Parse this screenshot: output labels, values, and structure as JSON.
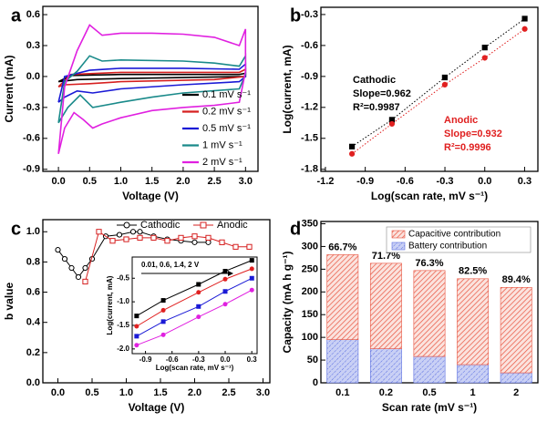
{
  "chart_data": [
    {
      "type": "line",
      "label": "a",
      "xlabel": "Voltage (V)",
      "ylabel": "Current (mA)",
      "xlim": [
        -0.25,
        3.2
      ],
      "ylim": [
        -0.92,
        0.68
      ],
      "xticks": [
        {
          "value": 0,
          "label": "0.0"
        },
        0.5,
        {
          "value": 1,
          "label": "1.0"
        },
        1.5,
        {
          "value": 2,
          "label": "2.0"
        },
        2.5,
        {
          "value": 3,
          "label": "3.0"
        }
      ],
      "yticks": [
        -0.9,
        -0.6,
        -0.3,
        {
          "value": 0,
          "label": "0.0"
        },
        0.3,
        0.6
      ],
      "legend": "lower right",
      "series": [
        {
          "name": "0.1 mV s⁻¹",
          "color": "#000000",
          "x": [
            0.0,
            0.2,
            1.0,
            2.9,
            3.0,
            3.0,
            1.0,
            0.3,
            0.0
          ],
          "values": [
            -0.05,
            0.01,
            0.02,
            0.02,
            0.03,
            0.0,
            -0.02,
            -0.03,
            -0.05
          ]
        },
        {
          "name": "0.2 mV s⁻¹",
          "color": "#d62020",
          "x": [
            0.0,
            0.2,
            1.0,
            2.9,
            3.0,
            3.0,
            2.5,
            1.0,
            0.5,
            0.1,
            0.0
          ],
          "values": [
            -0.1,
            0.02,
            0.04,
            0.04,
            0.07,
            0.0,
            -0.03,
            -0.05,
            -0.07,
            -0.08,
            -0.1
          ]
        },
        {
          "name": "0.5 mV s⁻¹",
          "color": "#1a1ad6",
          "x": [
            0.0,
            0.1,
            0.5,
            1.0,
            2.0,
            2.9,
            3.0,
            3.0,
            2.9,
            2.0,
            1.0,
            0.55,
            0.3,
            0.1,
            0.0
          ],
          "values": [
            -0.25,
            0.0,
            0.06,
            0.08,
            0.08,
            0.07,
            0.12,
            0.0,
            -0.05,
            -0.08,
            -0.12,
            -0.16,
            -0.14,
            -0.2,
            -0.25
          ]
        },
        {
          "name": "1 mV s⁻¹",
          "color": "#1a8a8a",
          "x": [
            0.0,
            0.1,
            0.3,
            0.5,
            0.7,
            1.0,
            2.0,
            2.5,
            2.9,
            3.0,
            3.0,
            2.9,
            2.0,
            1.5,
            1.0,
            0.55,
            0.35,
            0.15,
            0.0
          ],
          "values": [
            -0.45,
            -0.05,
            0.05,
            0.2,
            0.15,
            0.16,
            0.15,
            0.13,
            0.1,
            0.2,
            0.02,
            -0.12,
            -0.16,
            -0.2,
            -0.25,
            -0.3,
            -0.18,
            -0.3,
            -0.45
          ]
        },
        {
          "name": "2 mV s⁻¹",
          "color": "#e020e0",
          "x": [
            0.0,
            0.1,
            0.3,
            0.5,
            0.7,
            1.0,
            1.5,
            2.0,
            2.5,
            2.9,
            3.0,
            3.0,
            2.9,
            2.5,
            2.0,
            1.5,
            1.0,
            0.7,
            0.55,
            0.4,
            0.25,
            0.1,
            0.0
          ],
          "values": [
            -0.75,
            -0.1,
            0.25,
            0.5,
            0.4,
            0.42,
            0.42,
            0.41,
            0.38,
            0.3,
            0.46,
            0.05,
            -0.25,
            -0.28,
            -0.3,
            -0.33,
            -0.4,
            -0.46,
            -0.5,
            -0.42,
            -0.35,
            -0.5,
            -0.75
          ]
        }
      ]
    },
    {
      "type": "scatter",
      "label": "b",
      "xlabel": "Log(scan rate, mV s⁻¹)",
      "ylabel": "Log(current, mA)",
      "xlim": [
        -1.234,
        0.4
      ],
      "ylim": [
        -1.82,
        -0.23
      ],
      "xticks": [
        -1.2,
        -0.9,
        -0.6,
        -0.3,
        {
          "value": 0,
          "label": "0.0"
        },
        0.3
      ],
      "yticks": [
        -1.8,
        -1.5,
        -1.2,
        -0.9,
        -0.6,
        -0.3
      ],
      "x": [
        -1.0,
        -0.699,
        -0.301,
        0.0,
        0.301
      ],
      "series": [
        {
          "name": "Cathodic",
          "color": "#000000",
          "marker": "square",
          "line_style": "dotted",
          "values": [
            -1.58,
            -1.32,
            -0.91,
            -0.62,
            -0.34
          ]
        },
        {
          "name": "Anodic",
          "color": "#e02020",
          "marker": "circle",
          "line_style": "dotted",
          "values": [
            -1.65,
            -1.36,
            -0.98,
            -0.72,
            -0.44
          ]
        }
      ],
      "annotations": [
        "Cathodic",
        "Slope=0.962",
        "R²=0.9987",
        "Anodic",
        "Slope=0.932",
        "R²=0.9996"
      ]
    },
    {
      "type": "line",
      "label": "c",
      "xlabel": "Voltage (V)",
      "ylabel": "b value",
      "xlim": [
        -0.22,
        3.1
      ],
      "ylim": [
        0,
        1.08
      ],
      "xticks": [
        {
          "value": 0,
          "label": "0.0"
        },
        0.5,
        {
          "value": 1,
          "label": "1.0"
        },
        1.5,
        {
          "value": 2,
          "label": "2.0"
        },
        2.5,
        {
          "value": 3,
          "label": "3.0"
        }
      ],
      "yticks": [
        {
          "value": 0,
          "label": "0.0"
        },
        0.2,
        0.4,
        0.6,
        0.8,
        {
          "value": 1,
          "label": "1.0"
        }
      ],
      "legend": "top",
      "series": [
        {
          "name": "Cathodic",
          "color": "#000000",
          "marker": "open-circle",
          "x": [
            0.0,
            0.1,
            0.2,
            0.3,
            0.4,
            0.5,
            0.7,
            0.9,
            1.1,
            1.2,
            1.4,
            1.6,
            1.8,
            2.0,
            2.2
          ],
          "values": [
            0.88,
            0.82,
            0.76,
            0.7,
            0.76,
            0.82,
            0.97,
            0.98,
            1.0,
            1.0,
            0.97,
            0.95,
            0.94,
            0.93,
            0.93
          ]
        },
        {
          "name": "Anodic",
          "color": "#d62020",
          "marker": "open-square",
          "x": [
            0.4,
            0.6,
            0.8,
            1.0,
            1.2,
            1.4,
            1.6,
            1.8,
            2.0,
            2.2,
            2.4,
            2.6,
            2.8
          ],
          "values": [
            0.67,
            1.0,
            0.94,
            0.95,
            0.96,
            0.96,
            0.94,
            0.96,
            0.97,
            0.96,
            0.93,
            0.9,
            0.9
          ]
        }
      ]
    },
    {
      "type": "scatter",
      "xlabel": "Log(scan rate, mV s⁻¹)",
      "ylabel": "Log(current, mA)",
      "xlim": [
        -1.05,
        0.36
      ],
      "ylim": [
        -2.1,
        -0.05
      ],
      "xticks": [
        -0.9,
        -0.6,
        -0.3,
        {
          "value": 0,
          "label": "0.0"
        },
        0.3
      ],
      "yticks": [
        {
          "value": -2,
          "label": "-2.0"
        },
        -1.5,
        {
          "value": -1,
          "label": "-1.0"
        },
        -0.5
      ],
      "x": [
        -1.0,
        -0.699,
        -0.301,
        0.0,
        0.301
      ],
      "series": [
        {
          "color": "#000000",
          "marker": "square",
          "values": [
            -1.3,
            -0.97,
            -0.63,
            -0.35,
            -0.12
          ]
        },
        {
          "color": "#e02020",
          "marker": "circle",
          "values": [
            -1.52,
            -1.18,
            -0.8,
            -0.52,
            -0.3
          ]
        },
        {
          "color": "#1a1ad6",
          "marker": "square",
          "values": [
            -1.73,
            -1.42,
            -1.1,
            -0.78,
            -0.5
          ]
        },
        {
          "color": "#e020e0",
          "marker": "circle",
          "values": [
            -1.92,
            -1.7,
            -1.32,
            -1.05,
            -0.75
          ]
        }
      ],
      "annotations": [
        "0.01, 0.6, 1.4, 2 V"
      ]
    },
    {
      "type": "bar",
      "label": "d",
      "xlabel": "Scan rate (mV s⁻¹)",
      "ylabel": "Capacity (mA h g⁻¹)",
      "categories": [
        "0.1",
        "0.2",
        "0.5",
        "1",
        "2"
      ],
      "ylim": [
        0,
        355
      ],
      "yticks": [
        0,
        50,
        100,
        150,
        200,
        250,
        300,
        350
      ],
      "legend": "upper right",
      "stacked": true,
      "series": [
        {
          "name": "Battery contribution",
          "color": "#5a6ee0",
          "values": [
            95,
            75,
            58,
            40,
            22
          ]
        },
        {
          "name": "Capacitive contribution",
          "color": "#e8533f",
          "values": [
            187,
            188,
            189,
            189,
            188
          ]
        }
      ],
      "annotations": [
        "66.7%",
        "71.7%",
        "76.3%",
        "82.5%",
        "89.4%"
      ]
    }
  ]
}
